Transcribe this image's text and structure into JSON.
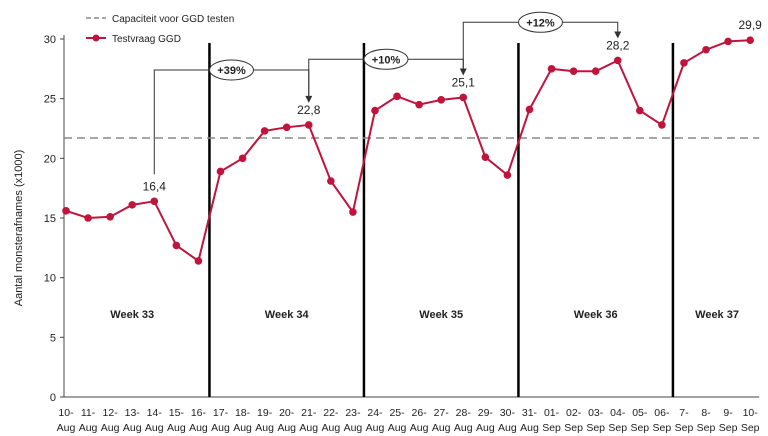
{
  "chart_data": {
    "type": "line",
    "ylabel": "Aantal monsterafnames (x1000)",
    "ylim": [
      0,
      30
    ],
    "yticks": [
      0,
      5,
      10,
      15,
      20,
      25,
      30
    ],
    "grid": false,
    "legend_position": "top-left",
    "categories": [
      "10-Aug",
      "11-Aug",
      "12-Aug",
      "13-Aug",
      "14-Aug",
      "15-Aug",
      "16-Aug",
      "17-Aug",
      "18-Aug",
      "19-Aug",
      "20-Aug",
      "21-Aug",
      "22-Aug",
      "23-Aug",
      "24-Aug",
      "25-Aug",
      "26-Aug",
      "27-Aug",
      "28-Aug",
      "29-Aug",
      "30-Aug",
      "31-Aug",
      "01-Sep",
      "02-Sep",
      "03-Sep",
      "04-Sep",
      "05-Sep",
      "06-Sep",
      "7-Sep",
      "8-Sep",
      "9-Sep",
      "10-Sep"
    ],
    "tick_top": [
      "10-",
      "11-",
      "12-",
      "13-",
      "14-",
      "15-",
      "16-",
      "17-",
      "18-",
      "19-",
      "20-",
      "21-",
      "22-",
      "23-",
      "24-",
      "25-",
      "26-",
      "27-",
      "28-",
      "29-",
      "30-",
      "31-",
      "01-",
      "02-",
      "03-",
      "04-",
      "05-",
      "06-",
      "7-",
      "8-",
      "9-",
      "10-"
    ],
    "tick_bottom": [
      "Aug",
      "Aug",
      "Aug",
      "Aug",
      "Aug",
      "Aug",
      "Aug",
      "Aug",
      "Aug",
      "Aug",
      "Aug",
      "Aug",
      "Aug",
      "Aug",
      "Aug",
      "Aug",
      "Aug",
      "Aug",
      "Aug",
      "Aug",
      "Aug",
      "Aug",
      "Sep",
      "Sep",
      "Sep",
      "Sep",
      "Sep",
      "Sep",
      "Sep",
      "Sep",
      "Sep",
      "Sep"
    ],
    "series": [
      {
        "name": "Testvraag GGD",
        "color": "#c0143c",
        "values": [
          15.6,
          15.0,
          15.1,
          16.1,
          16.4,
          12.7,
          11.4,
          18.9,
          20.0,
          22.3,
          22.6,
          22.8,
          18.1,
          15.5,
          24.0,
          25.2,
          24.5,
          24.9,
          25.1,
          20.1,
          18.6,
          24.1,
          27.5,
          27.3,
          27.3,
          28.2,
          24.0,
          22.8,
          28.0,
          29.1,
          29.8,
          29.9
        ]
      },
      {
        "name": "Capaciteit voor GGD testen",
        "style": "dashed",
        "color": "#888888",
        "value": 21.7
      }
    ],
    "weeks": [
      {
        "label": "Week 33",
        "start": 0,
        "end": 6
      },
      {
        "label": "Week 34",
        "start": 7,
        "end": 13
      },
      {
        "label": "Week 35",
        "start": 14,
        "end": 20
      },
      {
        "label": "Week 36",
        "start": 21,
        "end": 27
      },
      {
        "label": "Week 37",
        "start": 28,
        "end": 31
      }
    ],
    "value_labels": [
      {
        "index": 4,
        "text": "16,4"
      },
      {
        "index": 11,
        "text": "22,8"
      },
      {
        "index": 18,
        "text": "25,1"
      },
      {
        "index": 25,
        "text": "28,2"
      },
      {
        "index": 31,
        "text": "29,9"
      }
    ],
    "growth_annotations": [
      {
        "from": 4,
        "to": 11,
        "text": "+39%",
        "level": 27.4
      },
      {
        "from": 11,
        "to": 18,
        "text": "+10%",
        "level": 28.3
      },
      {
        "from": 18,
        "to": 25,
        "text": "+12%",
        "level": 31.4
      }
    ]
  }
}
